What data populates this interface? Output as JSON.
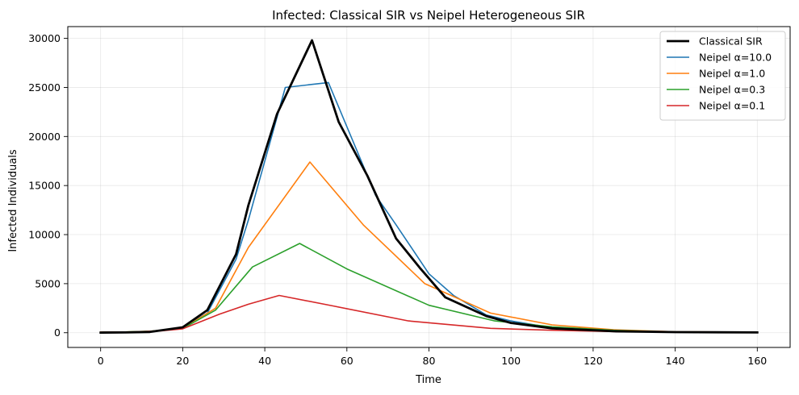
{
  "chart_data": {
    "type": "line",
    "title": "Infected: Classical SIR vs Neipel Heterogeneous SIR",
    "xlabel": "Time",
    "ylabel": "Infected Individuals",
    "xlim": [
      -8,
      168
    ],
    "ylim": [
      -1500,
      31200
    ],
    "xticks": [
      0,
      20,
      40,
      60,
      80,
      100,
      120,
      140,
      160
    ],
    "yticks": [
      0,
      5000,
      10000,
      15000,
      20000,
      25000,
      30000
    ],
    "grid": true,
    "legend_position": "top-right",
    "series": [
      {
        "name": "Classical SIR",
        "color": "#000000",
        "width": 2.8,
        "x": [
          0,
          6,
          12,
          20,
          26,
          33,
          36,
          43,
          51.5,
          58,
          65,
          72,
          78,
          84,
          94,
          100,
          110,
          125,
          140,
          160
        ],
        "y": [
          10,
          25,
          80,
          550,
          2300,
          8000,
          13000,
          22300,
          29800,
          21500,
          16000,
          9600,
          6500,
          3600,
          1700,
          1000,
          450,
          150,
          60,
          30
        ]
      },
      {
        "name": "Neipel α=10.0",
        "color": "#1f77b4",
        "width": 1.6,
        "x": [
          0,
          6,
          12,
          20,
          26,
          33,
          36,
          45,
          55.5,
          62,
          67,
          72,
          80,
          86,
          94,
          100,
          110,
          125,
          140,
          160
        ],
        "y": [
          10,
          25,
          80,
          500,
          2000,
          7500,
          11500,
          25000,
          25500,
          19000,
          14000,
          11000,
          6000,
          3800,
          1800,
          1200,
          500,
          180,
          70,
          30
        ]
      },
      {
        "name": "Neipel α=1.0",
        "color": "#ff7f0e",
        "width": 1.6,
        "x": [
          0,
          6,
          12,
          20,
          28,
          36,
          51,
          64,
          79,
          87,
          95,
          110,
          125,
          140,
          160
        ],
        "y": [
          50,
          80,
          150,
          420,
          2500,
          8700,
          17400,
          11000,
          5000,
          3500,
          2000,
          800,
          300,
          100,
          50
        ]
      },
      {
        "name": "Neipel α=0.3",
        "color": "#2ca02c",
        "width": 1.6,
        "x": [
          0,
          6,
          12,
          20,
          28,
          37,
          48.5,
          60,
          80,
          96,
          110,
          125,
          140,
          160
        ],
        "y": [
          50,
          80,
          150,
          420,
          2300,
          6700,
          9100,
          6500,
          2800,
          1200,
          600,
          250,
          80,
          40
        ]
      },
      {
        "name": "Neipel α=0.1",
        "color": "#d62728",
        "width": 1.6,
        "x": [
          0,
          8,
          15,
          20,
          29,
          36,
          43.5,
          57,
          75,
          95,
          110,
          125,
          140,
          160
        ],
        "y": [
          50,
          80,
          200,
          400,
          1900,
          2900,
          3800,
          2700,
          1200,
          450,
          250,
          120,
          60,
          40
        ]
      }
    ]
  }
}
